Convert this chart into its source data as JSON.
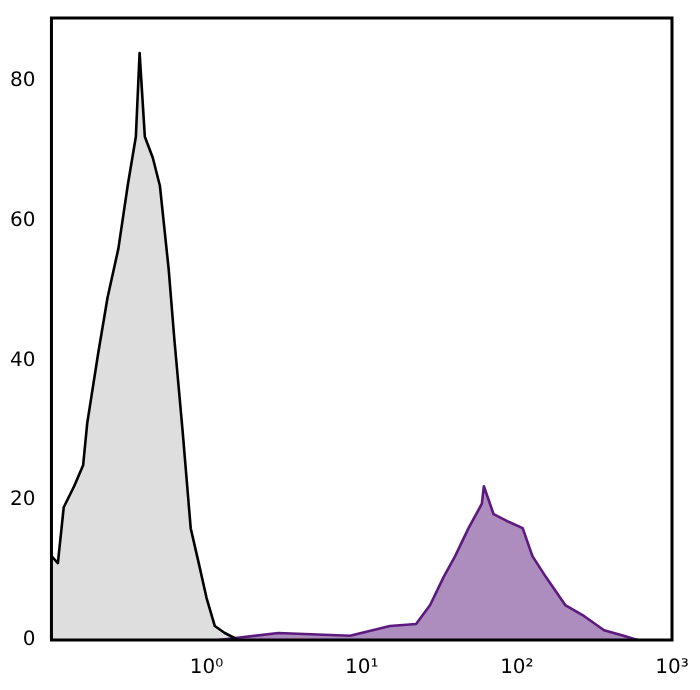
{
  "chart_data": {
    "type": "area",
    "log": "x",
    "grid": false,
    "legend": false,
    "marker": "none",
    "xlim": [
      0.1,
      1000
    ],
    "xticks": [
      {
        "value": 1,
        "label": "10⁰"
      },
      {
        "value": 10,
        "label": "10¹"
      },
      {
        "value": 100,
        "label": "10²"
      },
      {
        "value": 1000,
        "label": "10³"
      }
    ],
    "ylim": [
      0,
      89
    ],
    "yticks": [
      0,
      20,
      40,
      60,
      80
    ],
    "series": [
      {
        "color": "#000000",
        "x": [
          0.1,
          0.11,
          0.12,
          0.14,
          0.16,
          0.17,
          0.2,
          0.23,
          0.27,
          0.31,
          0.35,
          0.37,
          0.4,
          0.45,
          0.5,
          0.57,
          0.62,
          0.7,
          0.79,
          0.89,
          1.0,
          1.13,
          1.31,
          1.6
        ],
        "values": [
          12,
          11,
          19,
          22,
          25,
          31,
          41,
          49,
          56,
          65,
          72,
          84,
          72,
          69,
          65,
          53,
          43,
          30,
          16,
          11,
          6,
          2,
          1,
          0
        ]
      },
      {
        "color": "#5c1a7e",
        "x": [
          1.2,
          2.9,
          8.4,
          15.2,
          22.4,
          27.6,
          33.7,
          40,
          48.8,
          59.5,
          61.3,
          70.8,
          86.7,
          109,
          126,
          154,
          205,
          272,
          365,
          488,
          600
        ],
        "values": [
          0,
          1,
          0.6,
          2,
          2.3,
          5,
          9,
          12,
          16,
          19.5,
          22,
          18,
          17,
          16,
          12,
          9,
          5,
          3.4,
          1.4,
          0.6,
          0
        ]
      }
    ]
  }
}
